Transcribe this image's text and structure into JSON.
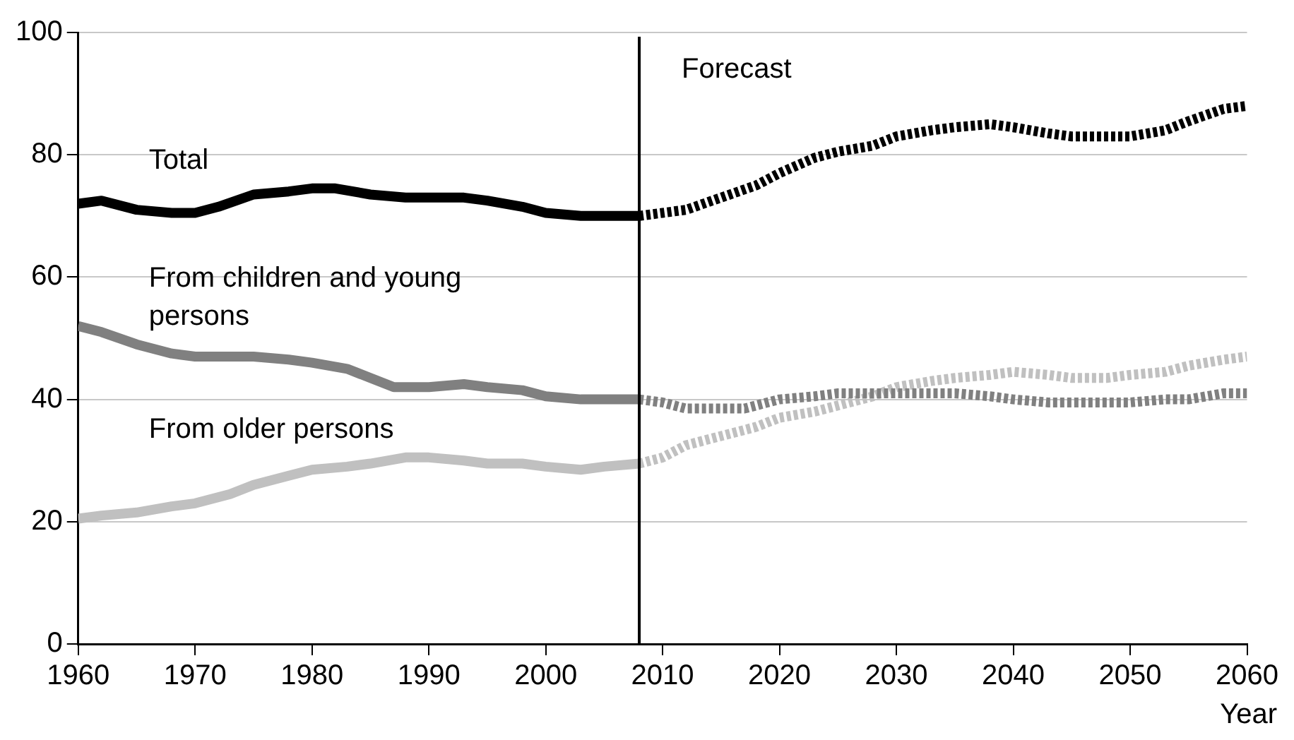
{
  "chart_data": {
    "type": "line",
    "xlabel": "Year",
    "xlim": [
      1960,
      2060
    ],
    "xticks": [
      1960,
      1970,
      1980,
      1990,
      2000,
      2010,
      2020,
      2030,
      2040,
      2050,
      2060
    ],
    "ylim": [
      0,
      100
    ],
    "yticks": [
      0,
      20,
      40,
      60,
      80,
      100
    ],
    "grid": "y",
    "legend": false,
    "marker": "none",
    "series": [
      {
        "name": "Total",
        "color": "#000000",
        "line_style": "solid",
        "x": [
          1960,
          1962,
          1965,
          1968,
          1970,
          1972,
          1975,
          1978,
          1980,
          1982,
          1985,
          1988,
          1990,
          1993,
          1995,
          1998,
          2000,
          2003,
          2005,
          2008
        ],
        "values": [
          72,
          72.5,
          71,
          70.5,
          70.5,
          71.5,
          73.5,
          74,
          74.5,
          74.5,
          73.5,
          73,
          73,
          73,
          72.5,
          71.5,
          70.5,
          70,
          70,
          70
        ]
      },
      {
        "color": "#000000",
        "line_style": "dotted",
        "x": [
          2008,
          2010,
          2012,
          2015,
          2018,
          2020,
          2023,
          2025,
          2028,
          2030,
          2033,
          2035,
          2038,
          2040,
          2043,
          2045,
          2048,
          2050,
          2053,
          2055,
          2058,
          2060
        ],
        "values": [
          70,
          70.5,
          71,
          73,
          75,
          77,
          79.5,
          80.5,
          81.5,
          83,
          84,
          84.5,
          85,
          84.5,
          83.5,
          83,
          83,
          83,
          84,
          85.5,
          87.5,
          88
        ]
      },
      {
        "name": "From children and young persons",
        "color": "#808080",
        "line_style": "solid",
        "x": [
          1960,
          1962,
          1965,
          1968,
          1970,
          1973,
          1975,
          1978,
          1980,
          1983,
          1985,
          1987,
          1990,
          1993,
          1995,
          1998,
          2000,
          2003,
          2005,
          2008
        ],
        "values": [
          52,
          51,
          49,
          47.5,
          47,
          47,
          47,
          46.5,
          46,
          45,
          43.5,
          42,
          42,
          42.5,
          42,
          41.5,
          40.5,
          40,
          40,
          40
        ]
      },
      {
        "color": "#808080",
        "line_style": "dotted",
        "x": [
          2008,
          2010,
          2012,
          2015,
          2017,
          2020,
          2023,
          2025,
          2028,
          2030,
          2033,
          2035,
          2038,
          2040,
          2043,
          2045,
          2048,
          2050,
          2053,
          2055,
          2058,
          2060
        ],
        "values": [
          40,
          39.5,
          38.5,
          38.5,
          38.5,
          40,
          40.5,
          41,
          41,
          41,
          41,
          41,
          40.5,
          40,
          39.5,
          39.5,
          39.5,
          39.5,
          40,
          40,
          41,
          41
        ]
      },
      {
        "name": "From older persons",
        "color": "#c0c0c0",
        "line_style": "solid",
        "x": [
          1960,
          1962,
          1965,
          1968,
          1970,
          1973,
          1975,
          1978,
          1980,
          1983,
          1985,
          1988,
          1990,
          1993,
          1995,
          1998,
          2000,
          2003,
          2005,
          2008
        ],
        "values": [
          20.5,
          21,
          21.5,
          22.5,
          23,
          24.5,
          26,
          27.5,
          28.5,
          29,
          29.5,
          30.5,
          30.5,
          30,
          29.5,
          29.5,
          29,
          28.5,
          29,
          29.5
        ]
      },
      {
        "color": "#c0c0c0",
        "line_style": "dotted",
        "x": [
          2008,
          2010,
          2012,
          2015,
          2018,
          2020,
          2023,
          2025,
          2028,
          2030,
          2033,
          2035,
          2038,
          2040,
          2043,
          2045,
          2048,
          2050,
          2053,
          2055,
          2058,
          2060
        ],
        "values": [
          29.5,
          30.5,
          32.5,
          34,
          35.5,
          37,
          38,
          39,
          40.5,
          42,
          43,
          43.5,
          44,
          44.5,
          44,
          43.5,
          43.5,
          44,
          44.5,
          45.5,
          46.5,
          47
        ]
      }
    ],
    "ref_lines": [
      {
        "axis": "x",
        "value": 2008,
        "label": "Forecast",
        "color": "#000000"
      }
    ]
  }
}
